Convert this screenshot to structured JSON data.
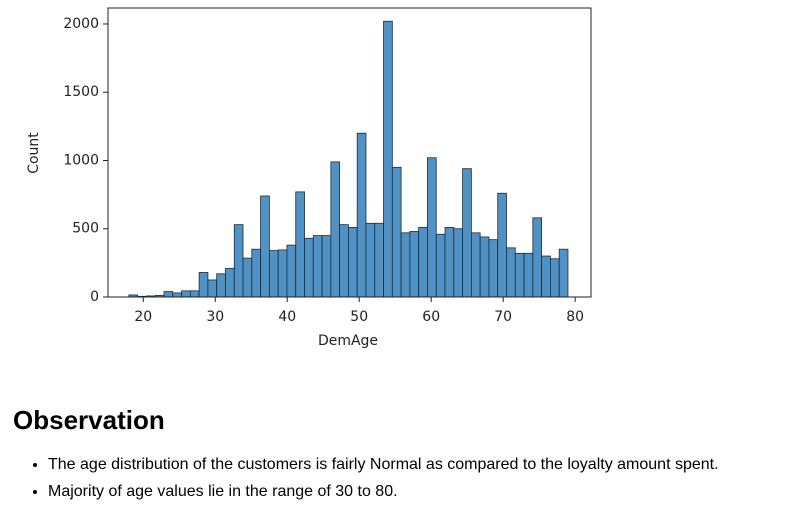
{
  "chart_data": {
    "type": "histogram",
    "xlabel": "DemAge",
    "ylabel": "Count",
    "bins": [
      18,
      19.22,
      20.44,
      21.66,
      22.88,
      24.1,
      25.32,
      26.54,
      27.76,
      28.98,
      30.2,
      31.42,
      32.64,
      33.86,
      35.08,
      36.3,
      37.52,
      38.74,
      39.96,
      41.18,
      42.4,
      43.62,
      44.84,
      46.06,
      47.28,
      48.5,
      49.72,
      50.94,
      52.16,
      53.38,
      54.6,
      55.82,
      57.04,
      58.26,
      59.48,
      60.7,
      61.92,
      63.14,
      64.36,
      65.58,
      66.8,
      68.02,
      69.24,
      70.46,
      71.68,
      72.9,
      74.12,
      75.34,
      76.56,
      77.78,
      79
    ],
    "values": [
      15,
      5,
      8,
      12,
      40,
      30,
      45,
      45,
      180,
      125,
      170,
      210,
      530,
      285,
      350,
      740,
      340,
      345,
      380,
      770,
      430,
      450,
      450,
      990,
      530,
      510,
      1200,
      540,
      540,
      2020,
      950,
      470,
      480,
      510,
      1020,
      460,
      510,
      500,
      940,
      470,
      440,
      420,
      760,
      360,
      320,
      320,
      580,
      300,
      280,
      350
    ],
    "color": "#5092c5",
    "xlim": [
      15.1,
      82.2
    ],
    "xticks": [
      20,
      30,
      40,
      50,
      60,
      70,
      80
    ],
    "ylim": [
      0,
      2117
    ],
    "yticks": [
      0,
      500,
      1000,
      1500,
      2000
    ]
  },
  "observation": {
    "heading": "Observation",
    "bullets": [
      "The age distribution of the customers is fairly Normal as compared to the loyalty amount spent.",
      "Majority of age values lie in the range of 30 to 80."
    ]
  }
}
